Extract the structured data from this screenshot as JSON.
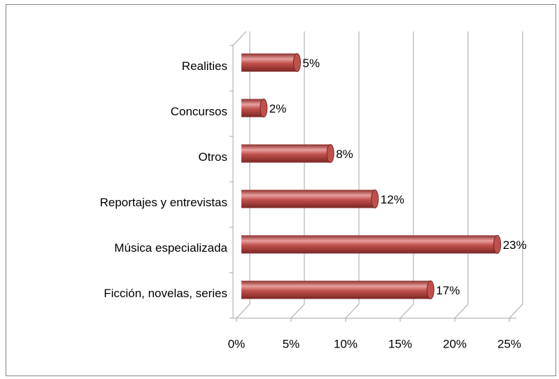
{
  "chart_data": {
    "type": "bar",
    "orientation": "horizontal",
    "categories": [
      "Ficción, novelas, series",
      "Música especializada",
      "Reportajes y entrevistas",
      "Otros",
      "Concursos",
      "Realities"
    ],
    "values": [
      17,
      23,
      12,
      8,
      2,
      5
    ],
    "value_labels": [
      "17%",
      "23%",
      "12%",
      "8%",
      "2%",
      "5%"
    ],
    "color": "#c0504d",
    "xlim": [
      0,
      25
    ],
    "xticks": [
      {
        "value": 0,
        "label": "0%"
      },
      {
        "value": 5,
        "label": "5%"
      },
      {
        "value": 10,
        "label": "10%"
      },
      {
        "value": 15,
        "label": "15%"
      },
      {
        "value": 20,
        "label": "20%"
      },
      {
        "value": 25,
        "label": "25%"
      }
    ],
    "grid": true
  }
}
